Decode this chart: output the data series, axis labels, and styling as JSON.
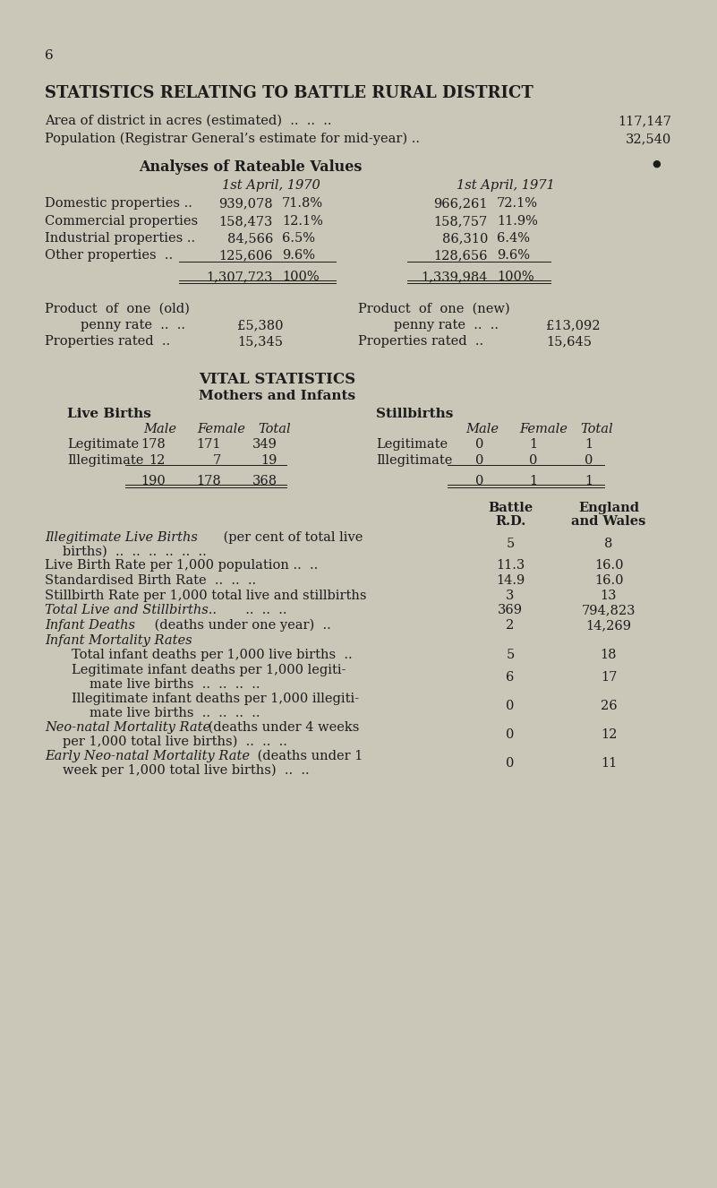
{
  "bg_color": "#cac6b8",
  "text_color": "#1c1c1c",
  "page_num": "6",
  "title": "STATISTICS RELATING TO BATTLE RURAL DISTRICT",
  "area_line": "Area of district in acres (estimated)",
  "area_dots": "  ..  ..  ..",
  "area_val": "117,147",
  "pop_line": "Population (Registrar General’s estimate for mid-year) ..",
  "pop_val": "32,540",
  "analyses_title": "Analyses of Rateable Values",
  "col1970": "1st April, 1970",
  "col1971": "1st April, 1971",
  "rateable_rows": [
    [
      "Domestic properties ..",
      "939,078",
      "71.8%",
      "966,261",
      "72.1%"
    ],
    [
      "Commercial properties",
      "158,473",
      "12.1%",
      "158,757",
      "11.9%"
    ],
    [
      "Industrial properties ..",
      "84,566",
      "6.5%",
      "86,310",
      "6.4%"
    ],
    [
      "Other properties  ..",
      "125,606",
      "9.6%",
      "128,656",
      "9.6%"
    ]
  ],
  "total_row": [
    "1,307,723",
    "100%",
    "1,339,984",
    "100%"
  ],
  "vital_title": "VITAL STATISTICS",
  "mothers_title": "Mothers and Infants",
  "live_births_header": "Live Births",
  "stillbirths_header": "Stillbirths"
}
